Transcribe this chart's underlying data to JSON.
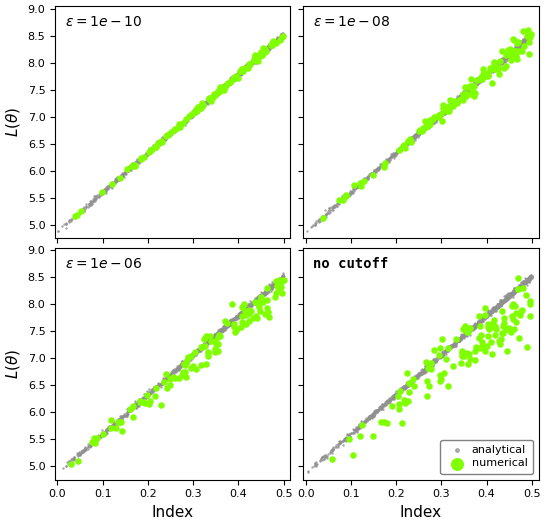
{
  "panel_labels": [
    "$\\varepsilon = 1e - 10$",
    "$\\varepsilon = 1e - 08$",
    "$\\varepsilon = 1e - 06$",
    "no cutoff"
  ],
  "ylim": [
    4.75,
    9.05
  ],
  "xlim": [
    -0.005,
    0.515
  ],
  "yticks": [
    5.0,
    5.5,
    6.0,
    6.5,
    7.0,
    7.5,
    8.0,
    8.5,
    9.0
  ],
  "xticks": [
    0.0,
    0.1,
    0.2,
    0.3,
    0.4,
    0.5
  ],
  "color_analytical": "#909090",
  "color_numerical": "#7fff00",
  "n_analytical": 1500,
  "n_numerical": 120,
  "line_slope": 7.3,
  "line_intercept": 4.87,
  "analytical_noise": 0.025,
  "numerical_biases": [
    -0.0,
    -0.0,
    -0.15,
    -0.45
  ],
  "numerical_spreads": [
    0.03,
    0.1,
    0.18,
    0.32
  ],
  "figsize": [
    5.46,
    5.24
  ],
  "dpi": 100,
  "ylabel": "$L(\\theta)$",
  "xlabel": "Index",
  "legend_labels": [
    "analytical",
    "numerical"
  ],
  "label_fontsize": 10,
  "tick_fontsize": 8
}
